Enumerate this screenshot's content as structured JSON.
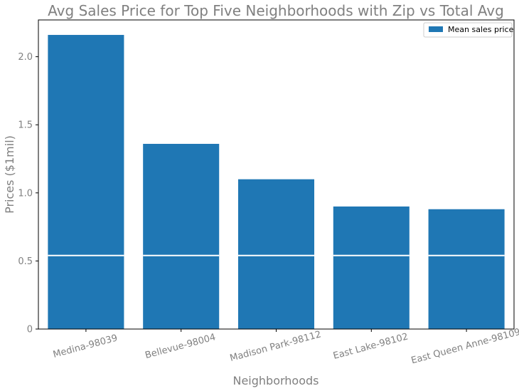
{
  "chart_data": {
    "type": "bar",
    "title": "Avg Sales Price for Top Five Neighborhoods with Zip vs Total Avg",
    "xlabel": "Neighborhoods",
    "ylabel": "Prices ($1mil)",
    "categories": [
      "Medina-98039",
      "Bellevue-98004",
      "Madison Park-98112",
      "East Lake-98102",
      "East Queen Anne-98109"
    ],
    "series": [
      {
        "name": "Mean sales price",
        "values": [
          2.16,
          1.36,
          1.1,
          0.9,
          0.88
        ]
      }
    ],
    "reference_line": {
      "value": 0.54
    },
    "ylim": [
      0,
      2.27
    ],
    "yticks": [
      0,
      0.5,
      1.0,
      1.5,
      2.0
    ],
    "ytick_labels": [
      "0",
      "0.5",
      "1.0",
      "1.5",
      "2.0"
    ],
    "grid": false,
    "legend_position": "top-right",
    "colors": {
      "bar": "#1f77b4",
      "reference_line": "#ffffff",
      "text": "#808080"
    }
  }
}
